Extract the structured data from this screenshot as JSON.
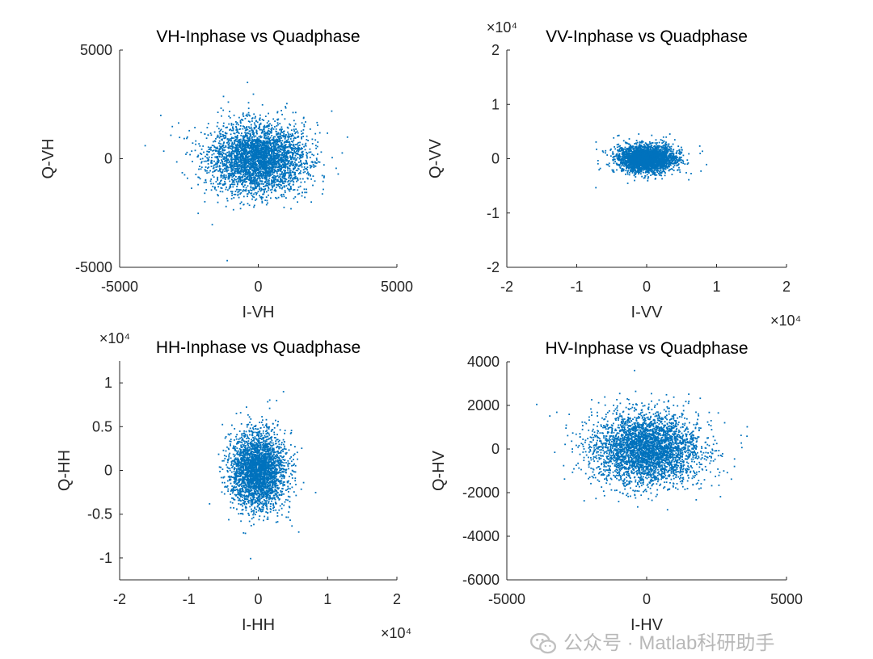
{
  "chart_data": [
    {
      "type": "scatter",
      "title": "VH-Inphase vs Quadphase",
      "xlabel": "I-VH",
      "ylabel": "Q-VH",
      "xlim": [
        -5000,
        5000
      ],
      "ylim": [
        -5000,
        5000
      ],
      "xticks": [
        -5000,
        0,
        5000
      ],
      "yticks": [
        -5000,
        0,
        5000
      ],
      "xtick_labels": [
        "-5000",
        "0",
        "5000"
      ],
      "ytick_labels": [
        "-5000",
        "0",
        "5000"
      ],
      "x_exponent": "",
      "y_exponent": "",
      "point_cloud": {
        "distribution": "gaussian",
        "mean": [
          0,
          0
        ],
        "std": [
          850,
          780
        ],
        "count": 3500
      },
      "color": "#0072BD"
    },
    {
      "type": "scatter",
      "title": "VV-Inphase vs Quadphase",
      "xlabel": "I-VV",
      "ylabel": "Q-VV",
      "xlim": [
        -2,
        2
      ],
      "ylim": [
        -2,
        2
      ],
      "xticks": [
        -2,
        -1,
        0,
        1,
        2
      ],
      "yticks": [
        -2,
        -1,
        0,
        1,
        2
      ],
      "xtick_labels": [
        "-2",
        "-1",
        "0",
        "1",
        "2"
      ],
      "ytick_labels": [
        "-2",
        "-1",
        "0",
        "1",
        "2"
      ],
      "x_exponent": "×10⁴",
      "y_exponent": "×10⁴",
      "point_cloud": {
        "distribution": "gaussian",
        "mean": [
          0,
          0
        ],
        "std": [
          0.2,
          0.12
        ],
        "count": 3000
      },
      "color": "#0072BD"
    },
    {
      "type": "scatter",
      "title": "HH-Inphase vs Quadphase",
      "xlabel": "I-HH",
      "ylabel": "Q-HH",
      "xlim": [
        -2,
        2
      ],
      "ylim": [
        -1.25,
        1.25
      ],
      "xticks": [
        -2,
        -1,
        0,
        1,
        2
      ],
      "yticks": [
        -1,
        -0.5,
        0,
        0.5,
        1
      ],
      "xtick_labels": [
        "-2",
        "-1",
        "0",
        "1",
        "2"
      ],
      "ytick_labels": [
        "-1",
        "-0.5",
        "0",
        "0.5",
        "1"
      ],
      "x_exponent": "×10⁴",
      "y_exponent": "×10⁴",
      "point_cloud": {
        "distribution": "gaussian",
        "mean": [
          0,
          0
        ],
        "std": [
          0.19,
          0.21
        ],
        "count": 3000
      },
      "color": "#0072BD"
    },
    {
      "type": "scatter",
      "title": "HV-Inphase vs Quadphase",
      "xlabel": "I-HV",
      "ylabel": "Q-HV",
      "xlim": [
        -5000,
        5000
      ],
      "ylim": [
        -6000,
        4000
      ],
      "xticks": [
        -5000,
        0,
        5000
      ],
      "yticks": [
        -6000,
        -4000,
        -2000,
        0,
        2000,
        4000
      ],
      "xtick_labels": [
        "-5000",
        "0",
        "5000"
      ],
      "ytick_labels": [
        "-6000",
        "-4000",
        "-2000",
        "0",
        "2000",
        "4000"
      ],
      "x_exponent": "",
      "y_exponent": "",
      "point_cloud": {
        "distribution": "gaussian",
        "mean": [
          0,
          0
        ],
        "std": [
          950,
          800
        ],
        "count": 3500
      },
      "color": "#0072BD"
    }
  ],
  "watermark": {
    "text": "公众号 · Matlab科研助手",
    "icon": "wechat-icon"
  }
}
